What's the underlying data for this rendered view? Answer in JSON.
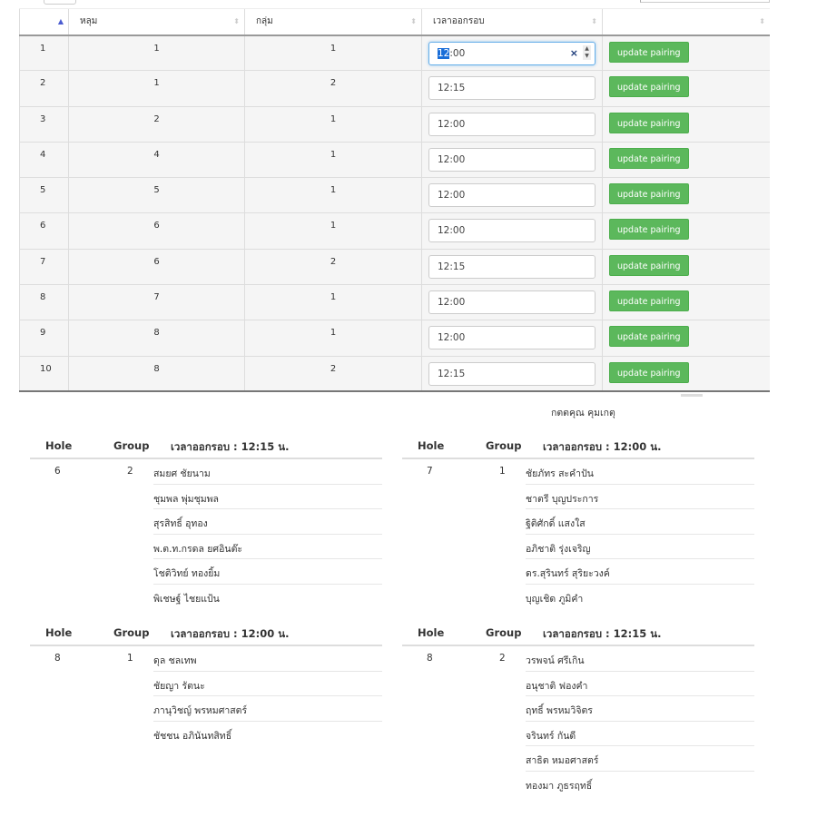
{
  "table": {
    "headers": [
      "",
      "หลุม",
      "กลุ่ม",
      "เวลาออกรอบ",
      ""
    ],
    "button_label": "update pairing",
    "rows": [
      {
        "no": "1",
        "hole": "1",
        "group": "1",
        "time": "12:00",
        "time_hl": "12",
        "time_rest": "00",
        "focused": true
      },
      {
        "no": "2",
        "hole": "1",
        "group": "2",
        "time": "12:15"
      },
      {
        "no": "3",
        "hole": "2",
        "group": "1",
        "time": "12:00"
      },
      {
        "no": "4",
        "hole": "4",
        "group": "1",
        "time": "12:00"
      },
      {
        "no": "5",
        "hole": "5",
        "group": "1",
        "time": "12:00"
      },
      {
        "no": "6",
        "hole": "6",
        "group": "1",
        "time": "12:00"
      },
      {
        "no": "7",
        "hole": "6",
        "group": "2",
        "time": "12:15"
      },
      {
        "no": "8",
        "hole": "7",
        "group": "1",
        "time": "12:00"
      },
      {
        "no": "9",
        "hole": "8",
        "group": "1",
        "time": "12:00"
      },
      {
        "no": "10",
        "hole": "8",
        "group": "2",
        "time": "12:15"
      }
    ]
  },
  "extra_name": "กตตคุณ คุมเกตุ",
  "pairings": {
    "hole_label": "Hole",
    "group_label": "Group",
    "groups": [
      {
        "time_label": "เวลาออกรอบ : 12:15 น.",
        "hole": "6",
        "group": "2",
        "players": [
          "สมยศ ชัยนาม",
          "ชุมพล พุ่มชุมพล",
          "สุรสิทธิ์ อุทอง",
          "พ.ต.ท.กรดล ยศอินต๊ะ",
          "โชติวิทย์ ทองยิ้ม",
          "พิเชษฐ์ ไชยแป้น"
        ]
      },
      {
        "time_label": "เวลาออกรอบ : 12:00 น.",
        "hole": "7",
        "group": "1",
        "players": [
          "ชัยภัทร สะคำปัน",
          "ชาตรี บุญประการ",
          "ฐิติศักดิ์ แสงใส",
          "อภิชาติ รุ่งเจริญ",
          "ดร.สุรินทร์ สุริยะวงค์",
          "บุญเชิด ภูมิคำ"
        ]
      },
      {
        "time_label": "เวลาออกรอบ : 12:00 น.",
        "hole": "8",
        "group": "1",
        "players": [
          "ดุล ชลเทพ",
          "ชัยญา รัตนะ",
          "ภานุวิชญ์ พรหมศาสตร์",
          "ชัชชน อภินันทสิทธิ์"
        ]
      },
      {
        "time_label": "เวลาออกรอบ : 12:15 น.",
        "hole": "8",
        "group": "2",
        "players": [
          "วรพจน์ ศรีเกิน",
          "อนุชาติ ฟองคำ",
          "ฤทธิ์ พรหมวิจิตร",
          "จรินทร์ กันดี",
          "สาธิต หมอศาสตร์",
          "ทองมา ภูธรฤทธิ์"
        ]
      }
    ]
  },
  "colors": {
    "button": "#5cb85c",
    "sort_active": "#4a5bd0",
    "focus": "#66afe9"
  }
}
